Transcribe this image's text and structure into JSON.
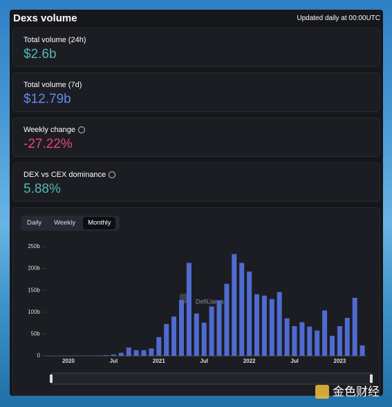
{
  "header": {
    "title": "Dexs volume",
    "updated": "Updated daily at 00:00UTC"
  },
  "stats": [
    {
      "label": "Total volume (24h)",
      "value": "$2.6b"
    },
    {
      "label": "Total volume (7d)",
      "value": "$12.79b"
    },
    {
      "label": "Weekly change",
      "value": "-27.22%"
    },
    {
      "label": "DEX vs CEX dominance",
      "value": "5.88%"
    }
  ],
  "tabs": [
    "Daily",
    "Weekly",
    "Monthly"
  ],
  "watermarks": [
    "DefiLlama",
    "金色财经"
  ],
  "chart_data": {
    "type": "bar",
    "color": "#4f6bd0",
    "categories": [
      "2020",
      null,
      null,
      null,
      null,
      null,
      "Jul",
      null,
      null,
      null,
      null,
      null,
      "2021",
      null,
      null,
      null,
      null,
      null,
      "Jul",
      null,
      null,
      null,
      null,
      null,
      "2022",
      null,
      null,
      null,
      null,
      null,
      "Jul",
      null,
      null,
      null,
      null,
      null,
      "2023",
      null,
      null,
      null
    ],
    "values": [
      0.3,
      0.4,
      0.5,
      0.5,
      0.8,
      1.5,
      3,
      7,
      19,
      13,
      13,
      17,
      43,
      73,
      90,
      128,
      213,
      97,
      76,
      113,
      127,
      165,
      233,
      213,
      193,
      141,
      138,
      130,
      146,
      86,
      68,
      77,
      67,
      58,
      104,
      46,
      68,
      87,
      133,
      24
    ],
    "ylim": [
      0,
      250
    ],
    "yticks": [
      0,
      {
        "value": 50,
        "label": "50b"
      },
      {
        "value": 100,
        "label": "100b"
      },
      {
        "value": 150,
        "label": "150b"
      },
      {
        "value": 200,
        "label": "200b"
      },
      {
        "value": 250,
        "label": "250b"
      }
    ]
  }
}
